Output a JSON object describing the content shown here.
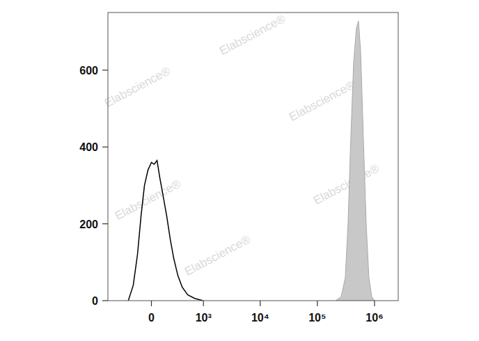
{
  "chart_data": {
    "type": "histogram",
    "log": "x",
    "watermark": "Elabscience®",
    "xlim": [
      -700,
      2600000
    ],
    "ylim": [
      0,
      750
    ],
    "xticks": [
      0,
      {
        "value": 1000,
        "label": "10³"
      },
      {
        "value": 10000,
        "label": "10⁴"
      },
      {
        "value": 100000,
        "label": "10⁵"
      },
      {
        "value": 1000000,
        "label": "10⁶"
      }
    ],
    "yticks": [
      0,
      200,
      400,
      600
    ],
    "series": [
      {
        "type": "line",
        "color": "#000000",
        "x": [
          -268,
          -200,
          -148,
          -108,
          -71,
          -35,
          0,
          28,
          57,
          86,
          124,
          164,
          208,
          256,
          320,
          396,
          510,
          690,
          980
        ],
        "values": [
          0,
          40,
          120,
          220,
          300,
          340,
          360,
          355,
          365,
          320,
          270,
          220,
          160,
          110,
          65,
          35,
          15,
          6,
          0
        ]
      },
      {
        "type": "area",
        "color": "#c8c8c8",
        "x": [
          208000,
          260000,
          308000,
          344000,
          384000,
          431000,
          482000,
          524000,
          571000,
          639000,
          715000,
          798000,
          895000,
          1000000
        ],
        "values": [
          0,
          10,
          60,
          200,
          420,
          620,
          710,
          728,
          650,
          420,
          200,
          60,
          10,
          0
        ]
      }
    ]
  }
}
